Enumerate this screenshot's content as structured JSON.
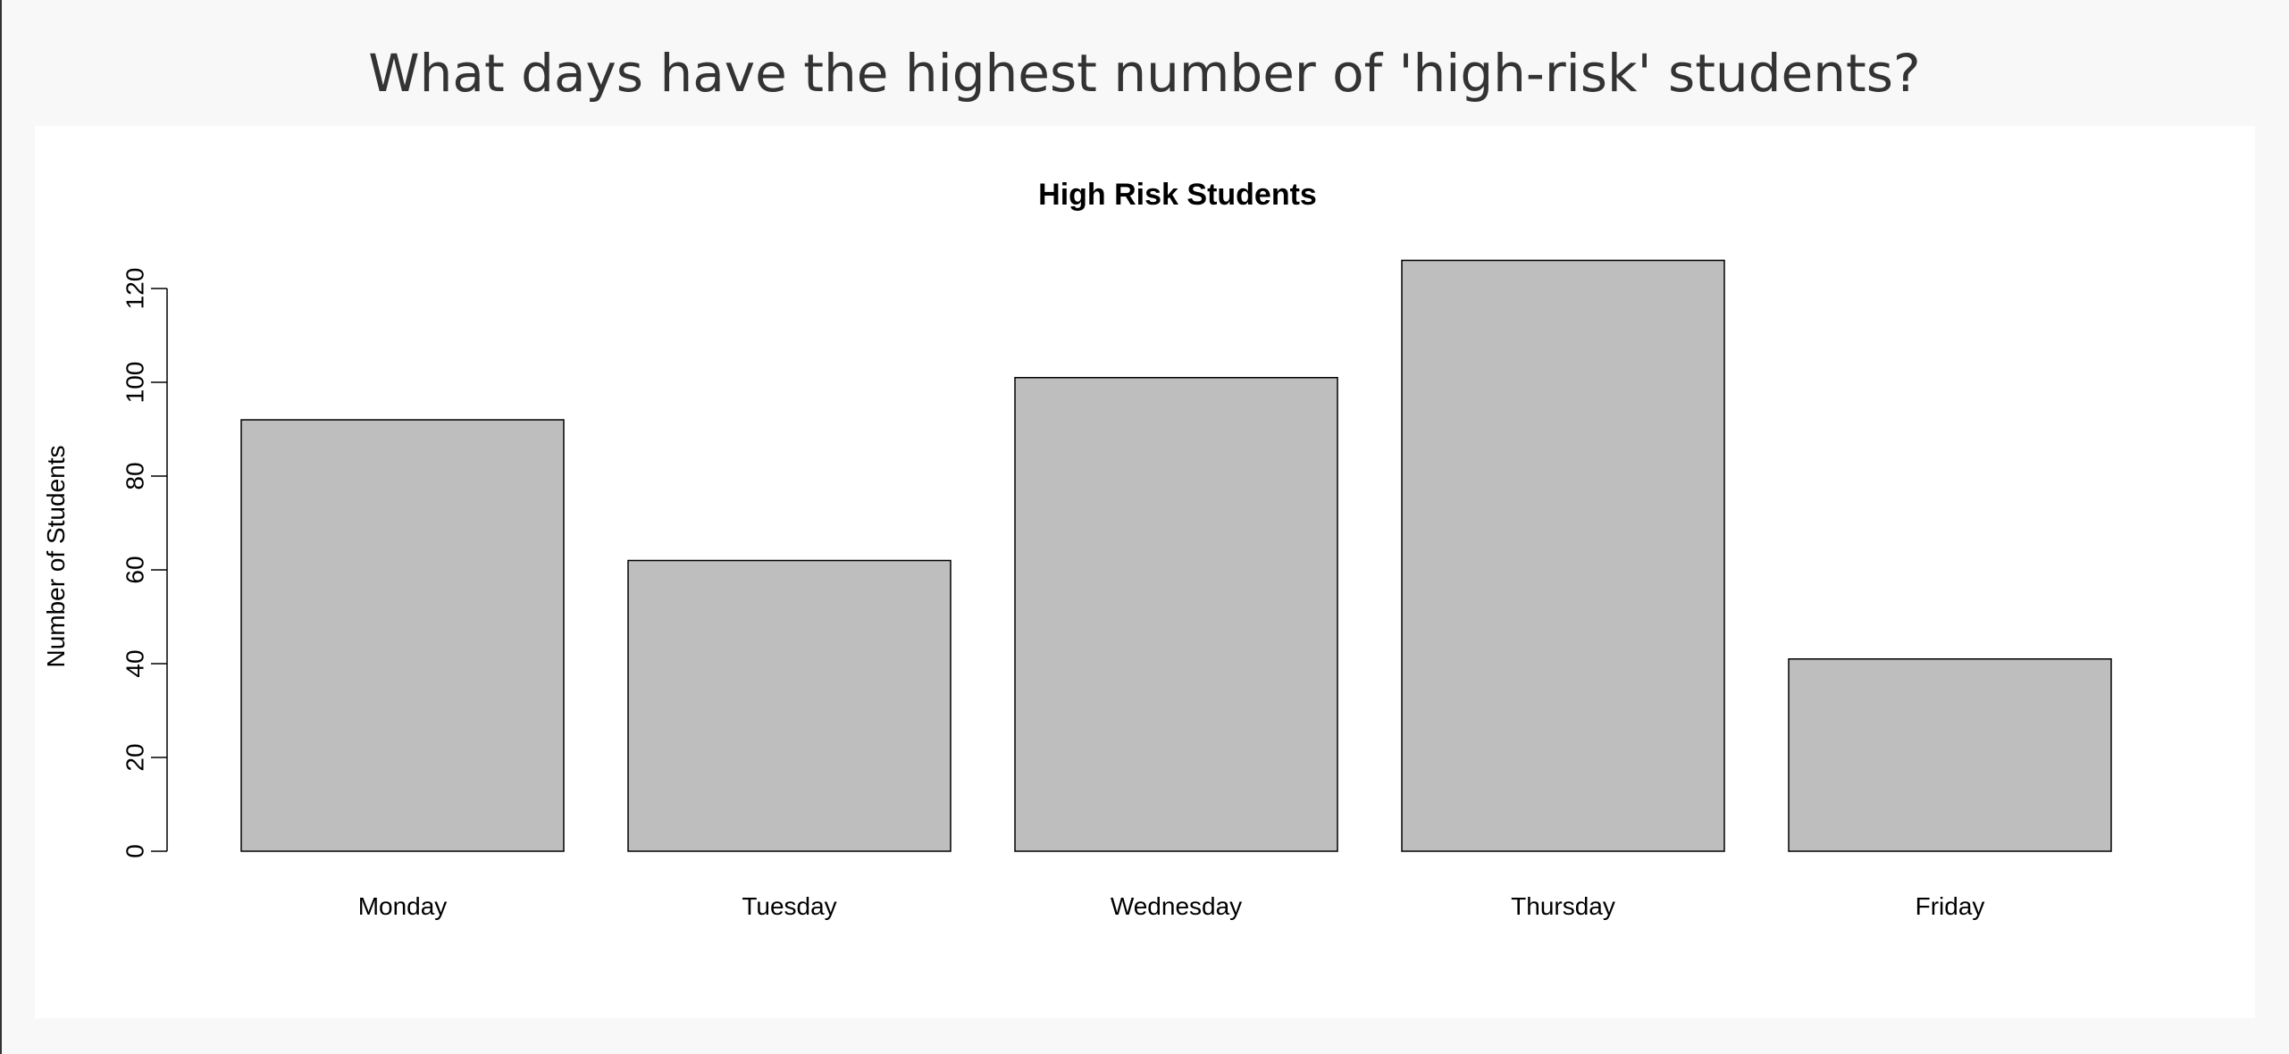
{
  "page": {
    "title": "What days have the highest number of 'high-risk' students?"
  },
  "chart_data": {
    "type": "bar",
    "title": "High Risk Students",
    "xlabel": "",
    "ylabel": "Number of Students",
    "categories": [
      "Monday",
      "Tuesday",
      "Wednesday",
      "Thursday",
      "Friday"
    ],
    "values": [
      92,
      62,
      101,
      126,
      41
    ],
    "y_ticks": [
      0,
      20,
      40,
      60,
      80,
      100,
      120
    ],
    "ylim": [
      0,
      126
    ],
    "bar_color": "#bebebe",
    "bar_border_color": "#000000",
    "grid": false,
    "legend": "none"
  }
}
